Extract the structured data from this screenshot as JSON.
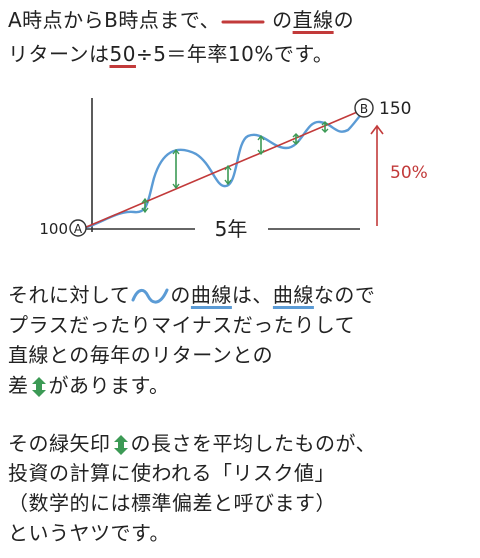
{
  "header": {
    "l1_a": "A時点からB時点まで、",
    "l1_b": "の",
    "l1_c": "直線",
    "l1_d": "の",
    "l2_a": "リターンは",
    "l2_b": "50",
    "l2_c": "÷5＝年率10%です。"
  },
  "diagram": {
    "start_marker": "A",
    "start_value": "100",
    "end_marker": "B",
    "end_value": "150",
    "growth_label": "50%",
    "period_label": "5年",
    "line_color": "#c23a3a",
    "curve_color": "#5b9bd5",
    "arrow_color": "#3c9a55"
  },
  "body": {
    "p1_a": "それに対して",
    "p1_b": "の",
    "p1_c": "曲線",
    "p1_d": "は、",
    "p1_e": "曲線",
    "p1_f": "なので",
    "p2": "プラスだったりマイナスだったりして",
    "p3": "直線との毎年のリターンとの",
    "p4_a": "差",
    "p4_b": "があります。",
    "p5_a": "その緑矢印",
    "p5_b": "の長さを平均したものが、",
    "p6": "投資の計算に使われる「リスク値」",
    "p7": "（数学的には標準偏差と呼びます）",
    "p8": "というヤツです。"
  }
}
